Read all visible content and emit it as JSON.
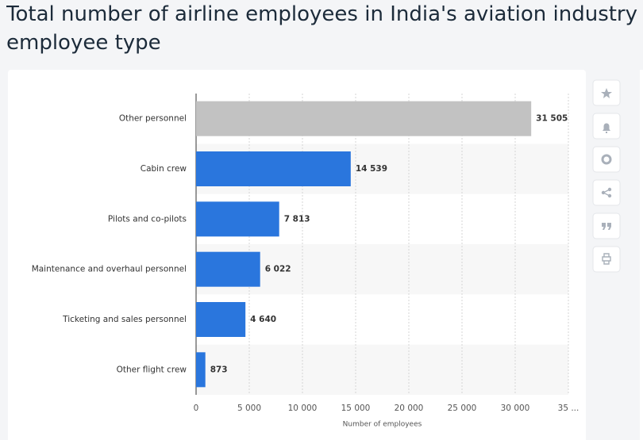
{
  "chart_data": {
    "type": "bar",
    "orientation": "horizontal",
    "title_lines": [
      "Total number of airline employees in India's aviation industry",
      "employee type"
    ],
    "categories": [
      "Other personnel",
      "Cabin crew",
      "Pilots and co-pilots",
      "Maintenance and overhaul personnel",
      "Ticketing and sales personnel",
      "Other flight crew"
    ],
    "values": [
      31505,
      14539,
      7813,
      6022,
      4640,
      873
    ],
    "value_labels": [
      "31 505",
      "14 539",
      "7 813",
      "6 022",
      "4 640",
      "873"
    ],
    "colors": [
      "#c2c2c2",
      "#2a76dd",
      "#2a76dd",
      "#2a76dd",
      "#2a76dd",
      "#2a76dd"
    ],
    "xlabel": "Number of employees",
    "xlim": [
      0,
      35000
    ],
    "xticks": [
      0,
      {
        "value": 5000,
        "label": "5 000"
      },
      {
        "value": 10000,
        "label": "10 000"
      },
      {
        "value": 15000,
        "label": "15 000"
      },
      {
        "value": 20000,
        "label": "20 000"
      },
      {
        "value": 25000,
        "label": "25 000"
      },
      {
        "value": 30000,
        "label": "30 000"
      },
      {
        "value": 35000,
        "label": "35 ..."
      }
    ],
    "grid": true
  }
}
